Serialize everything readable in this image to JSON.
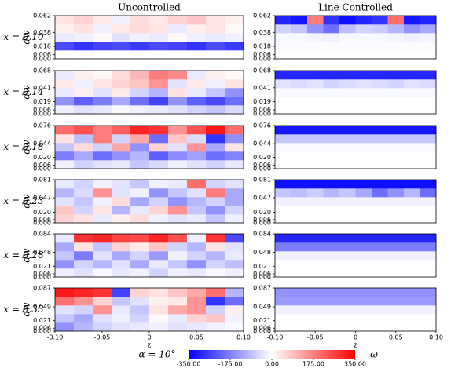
{
  "figure": {
    "colorbar": {
      "label": "α = 10°",
      "title": "ω",
      "clim": [
        -350,
        350
      ],
      "ticks": [
        {
          "value": -350,
          "label": "-350.00"
        },
        {
          "value": -175,
          "label": "-175.00"
        },
        {
          "value": 0,
          "label": "0.00"
        },
        {
          "value": 175,
          "label": "175.00"
        },
        {
          "value": 350,
          "label": "350.00"
        }
      ]
    }
  },
  "chart_data": [
    {
      "type": "heatmap",
      "title": "Uncontrolled",
      "annotation": "x = 0.10",
      "ylabel": "dw",
      "xlim": [
        -0.1,
        0.1
      ],
      "ylim": [
        0,
        0.062
      ],
      "yticks": [
        {
          "value": 0,
          "label": "0.000"
        },
        {
          "value": 0.006,
          "label": "0.006"
        },
        {
          "value": 0.018,
          "label": "0.018"
        },
        {
          "value": 0.038,
          "label": "0.038"
        },
        {
          "value": 0.062,
          "label": "0.062"
        }
      ],
      "values": [
        [
          0,
          0,
          0,
          0,
          0,
          0,
          0,
          0,
          0,
          0
        ],
        [
          -250,
          -280,
          -260,
          -250,
          -270,
          -250,
          -260,
          -280,
          -250,
          -270
        ],
        [
          -30,
          -20,
          10,
          -40,
          -20,
          -30,
          10,
          -20,
          -30,
          -20
        ],
        [
          20,
          40,
          -20,
          30,
          50,
          40,
          -30,
          20,
          40,
          10
        ],
        [
          40,
          60,
          30,
          -20,
          50,
          30,
          60,
          80,
          40,
          20
        ]
      ]
    },
    {
      "type": "heatmap",
      "title": "Line Controlled",
      "xlim": [
        -0.1,
        0.1
      ],
      "ylim": [
        0,
        0.062
      ],
      "yticks": [
        {
          "value": 0,
          "label": "0.000"
        },
        {
          "value": 0.006,
          "label": "0.006"
        },
        {
          "value": 0.018,
          "label": "0.018"
        },
        {
          "value": 0.038,
          "label": "0.038"
        },
        {
          "value": 0.062,
          "label": "0.062"
        }
      ],
      "values": [
        [
          0,
          0,
          0,
          0,
          0,
          0,
          0,
          0,
          0,
          0
        ],
        [
          -5,
          -5,
          -5,
          -5,
          -5,
          -5,
          -5,
          -5,
          -5,
          -5
        ],
        [
          -10,
          -10,
          -15,
          -20,
          -10,
          -10,
          -10,
          -15,
          -20,
          -15
        ],
        [
          -60,
          -80,
          -150,
          -200,
          -90,
          -60,
          -70,
          -100,
          -150,
          -120
        ],
        [
          -300,
          -320,
          180,
          -280,
          -330,
          -300,
          -280,
          200,
          -320,
          -300
        ]
      ]
    },
    {
      "type": "heatmap",
      "annotation": "x = 0.14",
      "ylabel": "dw",
      "xlim": [
        -0.1,
        0.1
      ],
      "ylim": [
        0,
        0.068
      ],
      "yticks": [
        {
          "value": 0,
          "label": "0.000"
        },
        {
          "value": 0.006,
          "label": "0.006"
        },
        {
          "value": 0.019,
          "label": "0.019"
        },
        {
          "value": 0.041,
          "label": "0.041"
        },
        {
          "value": 0.068,
          "label": "0.068"
        }
      ],
      "values": [
        [
          -20,
          -40,
          -30,
          -10,
          -20,
          -30,
          -40,
          -60,
          -80,
          -50
        ],
        [
          -150,
          -220,
          -180,
          -120,
          -200,
          -260,
          -150,
          -220,
          -250,
          -200
        ],
        [
          -30,
          20,
          -40,
          30,
          -60,
          -100,
          40,
          -30,
          -80,
          -150
        ],
        [
          30,
          -20,
          40,
          60,
          80,
          150,
          -40,
          30,
          -20,
          40
        ],
        [
          -30,
          20,
          10,
          50,
          100,
          180,
          160,
          -30,
          20,
          10
        ]
      ]
    },
    {
      "type": "heatmap",
      "xlim": [
        -0.1,
        0.1
      ],
      "ylim": [
        0,
        0.068
      ],
      "yticks": [
        {
          "value": 0,
          "label": "0.000"
        },
        {
          "value": 0.006,
          "label": "0.006"
        },
        {
          "value": 0.019,
          "label": "0.019"
        },
        {
          "value": 0.041,
          "label": "0.041"
        },
        {
          "value": 0.068,
          "label": "0.068"
        }
      ],
      "values": [
        [
          0,
          0,
          0,
          0,
          0,
          0,
          0,
          0,
          0,
          0
        ],
        [
          0,
          0,
          0,
          0,
          0,
          0,
          0,
          0,
          0,
          0
        ],
        [
          -10,
          -10,
          -10,
          -10,
          -10,
          -10,
          -10,
          -10,
          -10,
          -10
        ],
        [
          -40,
          -50,
          -40,
          -60,
          -50,
          -40,
          -50,
          -60,
          -40,
          -50
        ],
        [
          -300,
          -300,
          -300,
          -300,
          -300,
          -300,
          -300,
          -300,
          -300,
          -300
        ]
      ]
    },
    {
      "type": "heatmap",
      "annotation": "x = 0.18",
      "ylabel": "dw",
      "xlim": [
        -0.1,
        0.1
      ],
      "ylim": [
        0,
        0.076
      ],
      "yticks": [
        {
          "value": 0,
          "label": "0.000"
        },
        {
          "value": 0.006,
          "label": "0.006"
        },
        {
          "value": 0.02,
          "label": "0.020"
        },
        {
          "value": 0.044,
          "label": "0.044"
        },
        {
          "value": 0.076,
          "label": "0.076"
        }
      ],
      "values": [
        [
          -20,
          -60,
          -40,
          -30,
          -80,
          -50,
          -20,
          -40,
          -60,
          -30
        ],
        [
          -180,
          -120,
          -200,
          -150,
          -100,
          -220,
          -160,
          -130,
          -200,
          -170
        ],
        [
          -80,
          50,
          -60,
          120,
          -150,
          60,
          -40,
          150,
          -120,
          40
        ],
        [
          40,
          -90,
          180,
          -60,
          120,
          -200,
          80,
          -50,
          -280,
          -150
        ],
        [
          200,
          240,
          180,
          220,
          300,
          280,
          150,
          240,
          320,
          200
        ]
      ]
    },
    {
      "type": "heatmap",
      "xlim": [
        -0.1,
        0.1
      ],
      "ylim": [
        0,
        0.076
      ],
      "yticks": [
        {
          "value": 0,
          "label": "0.000"
        },
        {
          "value": 0.006,
          "label": "0.006"
        },
        {
          "value": 0.02,
          "label": "0.020"
        },
        {
          "value": 0.044,
          "label": "0.044"
        },
        {
          "value": 0.076,
          "label": "0.076"
        }
      ],
      "values": [
        [
          0,
          0,
          0,
          0,
          0,
          0,
          0,
          0,
          0,
          0
        ],
        [
          0,
          0,
          0,
          0,
          0,
          0,
          0,
          0,
          0,
          0
        ],
        [
          -10,
          -10,
          -10,
          -10,
          -10,
          -10,
          -10,
          -10,
          -10,
          -10
        ],
        [
          -80,
          -80,
          -80,
          -80,
          -80,
          -80,
          -80,
          -80,
          -80,
          -80
        ],
        [
          -320,
          -320,
          -320,
          -320,
          -320,
          -320,
          -320,
          -320,
          -320,
          -320
        ]
      ]
    },
    {
      "type": "heatmap",
      "annotation": "x = 0.23",
      "ylabel": "dw",
      "xlim": [
        -0.1,
        0.1
      ],
      "ylim": [
        0,
        0.081
      ],
      "yticks": [
        {
          "value": 0,
          "label": "0.000"
        },
        {
          "value": 0.006,
          "label": "0.006"
        },
        {
          "value": 0.02,
          "label": "0.020"
        },
        {
          "value": 0.047,
          "label": "0.047"
        },
        {
          "value": 0.081,
          "label": "0.081"
        }
      ],
      "values": [
        [
          60,
          40,
          -30,
          20,
          50,
          -20,
          -40,
          -30,
          -80,
          -20
        ],
        [
          80,
          -60,
          40,
          -100,
          -30,
          60,
          150,
          -80,
          -150,
          -60
        ],
        [
          -40,
          -80,
          -20,
          50,
          -120,
          -60,
          -150,
          -100,
          -60,
          -120
        ],
        [
          -100,
          -50,
          150,
          -40,
          -20,
          -150,
          -80,
          -40,
          180,
          -120
        ],
        [
          -30,
          -60,
          -20,
          -40,
          -80,
          -20,
          -30,
          200,
          -60,
          -40
        ]
      ]
    },
    {
      "type": "heatmap",
      "xlim": [
        -0.1,
        0.1
      ],
      "ylim": [
        0,
        0.081
      ],
      "yticks": [
        {
          "value": 0,
          "label": "0.000"
        },
        {
          "value": 0.006,
          "label": "0.006"
        },
        {
          "value": 0.02,
          "label": "0.020"
        },
        {
          "value": 0.047,
          "label": "0.047"
        },
        {
          "value": 0.081,
          "label": "0.081"
        }
      ],
      "values": [
        [
          0,
          0,
          0,
          0,
          0,
          0,
          0,
          0,
          0,
          0
        ],
        [
          0,
          0,
          0,
          0,
          0,
          0,
          0,
          0,
          0,
          0
        ],
        [
          -20,
          -20,
          -20,
          -20,
          -20,
          -20,
          -20,
          -20,
          -20,
          -20
        ],
        [
          -80,
          -90,
          -70,
          -100,
          -80,
          -120,
          -200,
          -150,
          -100,
          -200
        ],
        [
          -330,
          -330,
          -330,
          -330,
          -330,
          -330,
          -330,
          -330,
          -330,
          -330
        ]
      ]
    },
    {
      "type": "heatmap",
      "annotation": "x = 0.28",
      "ylabel": "dw",
      "xlim": [
        -0.1,
        0.1
      ],
      "ylim": [
        0,
        0.084
      ],
      "yticks": [
        {
          "value": 0,
          "label": "0.000"
        },
        {
          "value": 0.006,
          "label": "0.006"
        },
        {
          "value": 0.021,
          "label": "0.021"
        },
        {
          "value": 0.048,
          "label": "0.048"
        },
        {
          "value": 0.084,
          "label": "0.084"
        }
      ],
      "values": [
        [
          -20,
          -40,
          -10,
          -30,
          -20,
          -60,
          -20,
          -30,
          -10,
          -20
        ],
        [
          -150,
          -60,
          -100,
          -40,
          -120,
          -30,
          -80,
          -150,
          -60,
          -90
        ],
        [
          -80,
          -180,
          -40,
          -120,
          -60,
          -140,
          -20,
          -60,
          -100,
          -30
        ],
        [
          -120,
          40,
          -80,
          60,
          30,
          80,
          -60,
          -100,
          40,
          -40
        ],
        [
          -30,
          280,
          300,
          260,
          250,
          300,
          240,
          -20,
          280,
          -250
        ]
      ]
    },
    {
      "type": "heatmap",
      "xlim": [
        -0.1,
        0.1
      ],
      "ylim": [
        0,
        0.084
      ],
      "yticks": [
        {
          "value": 0,
          "label": "0.000"
        },
        {
          "value": 0.006,
          "label": "0.006"
        },
        {
          "value": 0.021,
          "label": "0.021"
        },
        {
          "value": 0.048,
          "label": "0.048"
        },
        {
          "value": 0.084,
          "label": "0.084"
        }
      ],
      "values": [
        [
          0,
          0,
          0,
          0,
          0,
          0,
          0,
          0,
          0,
          0
        ],
        [
          0,
          0,
          0,
          0,
          0,
          0,
          0,
          0,
          0,
          0
        ],
        [
          -20,
          -20,
          -20,
          -20,
          -20,
          -20,
          -20,
          -20,
          -20,
          -20
        ],
        [
          -180,
          -180,
          -180,
          -180,
          -180,
          -180,
          -180,
          -180,
          -180,
          -180
        ],
        [
          -300,
          -300,
          -300,
          -300,
          -300,
          -300,
          -300,
          -300,
          -300,
          -300
        ]
      ]
    },
    {
      "type": "heatmap",
      "annotation": "x = 0.33",
      "ylabel": "dw",
      "xlabel": "z",
      "xlim": [
        -0.1,
        0.1
      ],
      "ylim": [
        0,
        0.087
      ],
      "xticks": [
        {
          "value": -0.1,
          "label": "-0.10"
        },
        {
          "value": -0.05,
          "label": "-0.05"
        },
        0,
        {
          "value": 0.05,
          "label": "0.05"
        },
        {
          "value": 0.1,
          "label": "0.10"
        }
      ],
      "yticks": [
        {
          "value": 0,
          "label": "0.000"
        },
        {
          "value": 0.006,
          "label": "0.006"
        },
        {
          "value": 0.021,
          "label": "0.021"
        },
        {
          "value": 0.049,
          "label": "0.049"
        },
        {
          "value": 0.087,
          "label": "0.087"
        }
      ],
      "values": [
        [
          -150,
          -100,
          -60,
          -40,
          -30,
          -20,
          -40,
          -30,
          -20,
          -10
        ],
        [
          -80,
          -120,
          -40,
          -20,
          -60,
          10,
          -30,
          60,
          80,
          -20
        ],
        [
          -40,
          -60,
          150,
          -30,
          -80,
          40,
          120,
          150,
          -60,
          20
        ],
        [
          200,
          150,
          60,
          -80,
          -40,
          20,
          30,
          150,
          -280,
          -200
        ],
        [
          320,
          300,
          280,
          -260,
          60,
          40,
          80,
          120,
          200,
          -100
        ]
      ]
    },
    {
      "type": "heatmap",
      "xlabel": "z",
      "xlim": [
        -0.1,
        0.1
      ],
      "ylim": [
        0,
        0.087
      ],
      "xticks": [
        {
          "value": -0.1,
          "label": "-0.10"
        },
        {
          "value": -0.05,
          "label": "-0.05"
        },
        0,
        {
          "value": 0.05,
          "label": "0.05"
        },
        {
          "value": 0.1,
          "label": "0.10"
        }
      ],
      "yticks": [
        {
          "value": 0,
          "label": "0.000"
        },
        {
          "value": 0.006,
          "label": "0.006"
        },
        {
          "value": 0.021,
          "label": "0.021"
        },
        {
          "value": 0.049,
          "label": "0.049"
        },
        {
          "value": 0.087,
          "label": "0.087"
        }
      ],
      "values": [
        [
          0,
          0,
          0,
          0,
          0,
          0,
          0,
          0,
          0,
          0
        ],
        [
          0,
          0,
          0,
          0,
          0,
          0,
          0,
          0,
          0,
          0
        ],
        [
          -20,
          -20,
          -20,
          -20,
          -20,
          -20,
          -20,
          -20,
          -20,
          -20
        ],
        [
          -140,
          -140,
          -140,
          -140,
          -140,
          -140,
          -140,
          -140,
          -140,
          -140
        ],
        [
          -150,
          -150,
          -150,
          -150,
          -150,
          -150,
          -150,
          -150,
          -150,
          -150
        ]
      ]
    }
  ]
}
